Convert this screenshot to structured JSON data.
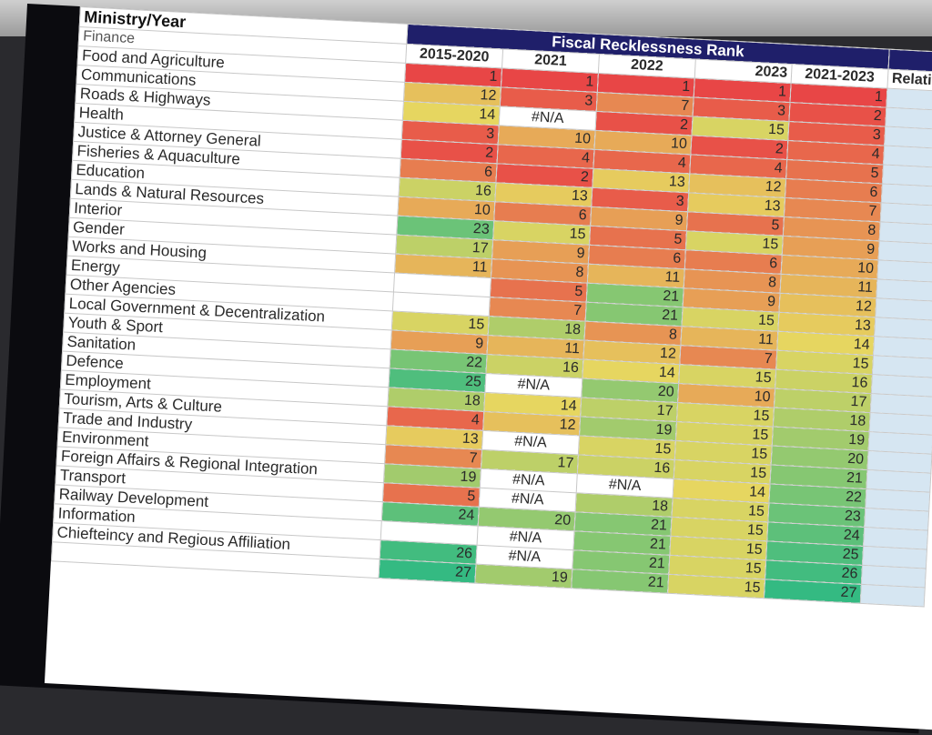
{
  "sheet": {
    "corner_label": "Ministry/Year",
    "group_header": "Fiscal Recklessness Rank",
    "columns": [
      "2015-2020",
      "2021",
      "2022",
      "2023",
      "2021-2023",
      "Relativ"
    ],
    "rows": [
      {
        "name": "Finance",
        "v": [
          "",
          "",
          "",
          "",
          "",
          ""
        ]
      },
      {
        "name": "Food and Agriculture",
        "v": [
          "1",
          "1",
          "1",
          "1",
          "1",
          ""
        ]
      },
      {
        "name": "Communications",
        "v": [
          "12",
          "3",
          "7",
          "3",
          "2",
          ""
        ]
      },
      {
        "name": "Roads & Highways",
        "v": [
          "14",
          "#N/A",
          "2",
          "15",
          "3",
          ""
        ]
      },
      {
        "name": "Health",
        "v": [
          "3",
          "10",
          "10",
          "2",
          "4",
          ""
        ]
      },
      {
        "name": "Justice & Attorney General",
        "v": [
          "2",
          "4",
          "4",
          "4",
          "5",
          ""
        ]
      },
      {
        "name": "Fisheries & Aquaculture",
        "v": [
          "6",
          "2",
          "13",
          "12",
          "6",
          ""
        ]
      },
      {
        "name": "Education",
        "v": [
          "16",
          "13",
          "3",
          "13",
          "7",
          ""
        ]
      },
      {
        "name": "Lands & Natural Resources",
        "v": [
          "10",
          "6",
          "9",
          "5",
          "8",
          ""
        ]
      },
      {
        "name": "Interior",
        "v": [
          "23",
          "15",
          "5",
          "15",
          "9",
          ""
        ]
      },
      {
        "name": "Gender",
        "v": [
          "17",
          "9",
          "6",
          "6",
          "10",
          ""
        ]
      },
      {
        "name": "Works and Housing",
        "v": [
          "11",
          "8",
          "11",
          "8",
          "11",
          ""
        ]
      },
      {
        "name": "Energy",
        "v": [
          "",
          "5",
          "21",
          "9",
          "12",
          ""
        ]
      },
      {
        "name": "Other Agencies",
        "v": [
          "",
          "7",
          "21",
          "15",
          "13",
          ""
        ]
      },
      {
        "name": "Local Government & Decentralization",
        "v": [
          "15",
          "18",
          "8",
          "11",
          "14",
          ""
        ]
      },
      {
        "name": "Youth & Sport",
        "v": [
          "9",
          "11",
          "12",
          "7",
          "15",
          ""
        ]
      },
      {
        "name": "Sanitation",
        "v": [
          "22",
          "16",
          "14",
          "15",
          "16",
          ""
        ]
      },
      {
        "name": "Defence",
        "v": [
          "25",
          "#N/A",
          "20",
          "10",
          "17",
          ""
        ]
      },
      {
        "name": "Employment",
        "v": [
          "18",
          "14",
          "17",
          "15",
          "18",
          ""
        ]
      },
      {
        "name": "Tourism, Arts & Culture",
        "v": [
          "4",
          "12",
          "19",
          "15",
          "19",
          ""
        ]
      },
      {
        "name": "Trade and Industry",
        "v": [
          "13",
          "#N/A",
          "15",
          "15",
          "20",
          ""
        ]
      },
      {
        "name": "Environment",
        "v": [
          "7",
          "17",
          "16",
          "15",
          "21",
          ""
        ]
      },
      {
        "name": "Foreign Affairs & Regional Integration",
        "v": [
          "19",
          "#N/A",
          "#N/A",
          "14",
          "22",
          ""
        ]
      },
      {
        "name": "Transport",
        "v": [
          "5",
          "#N/A",
          "18",
          "15",
          "23",
          ""
        ]
      },
      {
        "name": "Railway Development",
        "v": [
          "24",
          "20",
          "21",
          "15",
          "24",
          ""
        ]
      },
      {
        "name": "Information",
        "v": [
          "",
          "#N/A",
          "21",
          "15",
          "25",
          ""
        ]
      },
      {
        "name": "Chiefteincy and Regious Affiliation",
        "v": [
          "26",
          "#N/A",
          "21",
          "15",
          "26",
          ""
        ]
      },
      {
        "name": "",
        "v": [
          "27",
          "19",
          "21",
          "15",
          "27",
          ""
        ]
      }
    ]
  }
}
